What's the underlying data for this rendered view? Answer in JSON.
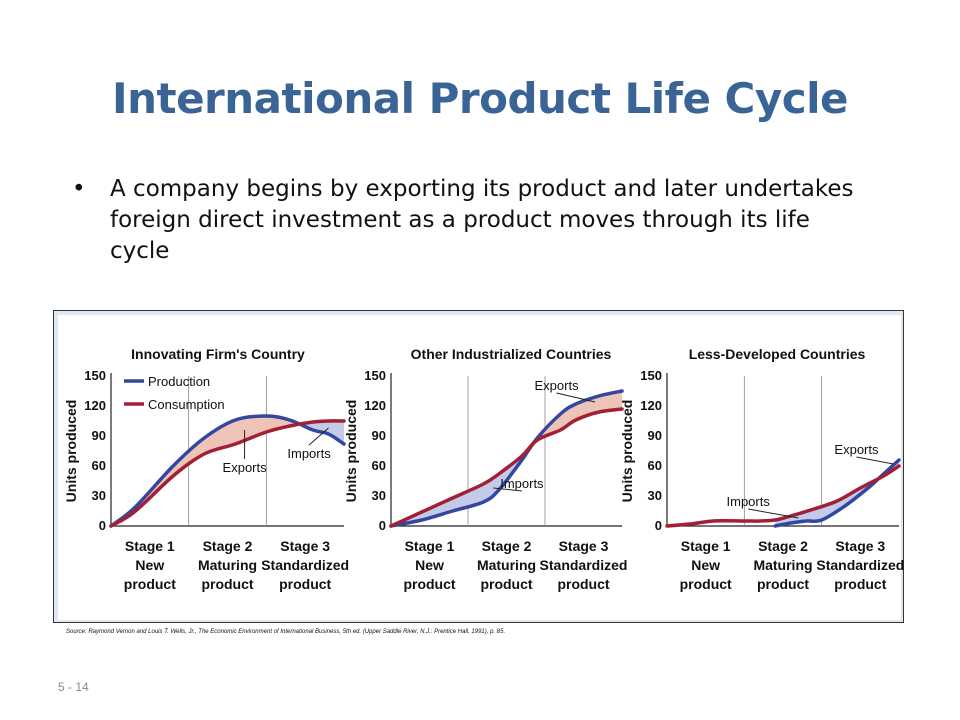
{
  "slide": {
    "title": "International Product Life Cycle",
    "bullet_glyph": "•",
    "bullet": "A company begins by exporting its product and later undertakes foreign direct investment as a product moves through its life cycle",
    "source": "Source: Raymond Vernon and Louis T. Wells, Jr., The Economic Environment of International Business, 5th ed. (Upper Saddle River, N.J.: Prentice Hall, 1991), p. 85.",
    "slide_number": "5 - 14"
  },
  "colors": {
    "production": "#3347a0",
    "consumption": "#a31f34",
    "exports_fill": "#efc4b8",
    "imports_fill": "#c3cbe8",
    "panel_bg": "#ffffff",
    "frame_bg": "#dfe8f1"
  },
  "chart_data": [
    {
      "type": "line",
      "title": "Innovating Firm's Country",
      "ylabel": "Units produced",
      "ylim": [
        0,
        150
      ],
      "yticks": [
        "0",
        "30",
        "60",
        "90",
        "120",
        "150"
      ],
      "stages": [
        [
          "Stage 1",
          "New",
          "product"
        ],
        [
          "Stage 2",
          "Maturing",
          "product"
        ],
        [
          "Stage 3",
          "Standardized",
          "product"
        ]
      ],
      "legend": {
        "placement": "top-left",
        "entries": [
          "Production",
          "Consumption"
        ]
      },
      "x_range": [
        0,
        3
      ],
      "series": [
        {
          "name": "Production",
          "x": [
            0,
            0.3,
            0.8,
            1.2,
            1.6,
            2.0,
            2.3,
            2.6,
            2.8,
            3.0
          ],
          "values": [
            0,
            18,
            60,
            88,
            106,
            110,
            106,
            96,
            92,
            82
          ]
        },
        {
          "name": "Consumption",
          "x": [
            0,
            0.3,
            0.8,
            1.2,
            1.6,
            2.0,
            2.3,
            2.6,
            2.8,
            3.0
          ],
          "values": [
            0,
            14,
            50,
            72,
            82,
            94,
            100,
            104,
            105,
            105
          ]
        }
      ],
      "annotations": [
        {
          "text": "Exports",
          "x": 1.72,
          "y": 54,
          "arrow_to": [
            1.72,
            96
          ]
        },
        {
          "text": "Imports",
          "x": 2.55,
          "y": 68,
          "arrow_to": [
            2.8,
            98
          ]
        }
      ]
    },
    {
      "type": "line",
      "title": "Other Industrialized Countries",
      "ylabel": "Units produced",
      "ylim": [
        0,
        150
      ],
      "yticks": [
        "0",
        "30",
        "60",
        "90",
        "120",
        "150"
      ],
      "stages": [
        [
          "Stage 1",
          "New",
          "product"
        ],
        [
          "Stage 2",
          "Maturing",
          "product"
        ],
        [
          "Stage 3",
          "Standardized",
          "product"
        ]
      ],
      "x_range": [
        0,
        3
      ],
      "series": [
        {
          "name": "Production",
          "x": [
            0,
            0.4,
            0.8,
            1.2,
            1.4,
            1.7,
            1.9,
            2.2,
            2.4,
            2.7,
            3.0
          ],
          "values": [
            0,
            6,
            15,
            24,
            36,
            66,
            88,
            112,
            122,
            130,
            135
          ]
        },
        {
          "name": "Consumption",
          "x": [
            0,
            0.4,
            0.8,
            1.2,
            1.4,
            1.7,
            1.9,
            2.2,
            2.4,
            2.7,
            3.0
          ],
          "values": [
            0,
            14,
            28,
            42,
            52,
            70,
            86,
            96,
            106,
            114,
            117
          ]
        }
      ],
      "annotations": [
        {
          "text": "Imports",
          "x": 1.7,
          "y": 38,
          "arrow_to": [
            1.33,
            38
          ]
        },
        {
          "text": "Exports",
          "x": 2.15,
          "y": 136,
          "arrow_to": [
            2.65,
            124
          ]
        }
      ]
    },
    {
      "type": "line",
      "title": "Less-Developed Countries",
      "ylabel": "Units produced",
      "ylim": [
        0,
        150
      ],
      "yticks": [
        "0",
        "30",
        "60",
        "90",
        "120",
        "150"
      ],
      "stages": [
        [
          "Stage 1",
          "New",
          "product"
        ],
        [
          "Stage 2",
          "Maturing",
          "product"
        ],
        [
          "Stage 3",
          "Standardized",
          "product"
        ]
      ],
      "x_range": [
        0,
        3
      ],
      "series": [
        {
          "name": "Production",
          "x": [
            1.4,
            1.6,
            1.8,
            2.0,
            2.3,
            2.6,
            2.8,
            3.0
          ],
          "values": [
            0,
            3,
            5,
            6,
            20,
            38,
            52,
            66
          ]
        },
        {
          "name": "Consumption",
          "x": [
            0,
            0.3,
            0.6,
            1.0,
            1.2,
            1.4,
            1.6,
            1.9,
            2.2,
            2.5,
            2.8,
            3.0
          ],
          "values": [
            0,
            2,
            5,
            5,
            5,
            6,
            10,
            17,
            25,
            38,
            50,
            60
          ]
        }
      ],
      "annotations": [
        {
          "text": "Imports",
          "x": 1.05,
          "y": 20,
          "arrow_to": [
            1.7,
            8
          ]
        },
        {
          "text": "Exports",
          "x": 2.45,
          "y": 72,
          "arrow_to": [
            2.93,
            62
          ]
        }
      ]
    }
  ]
}
